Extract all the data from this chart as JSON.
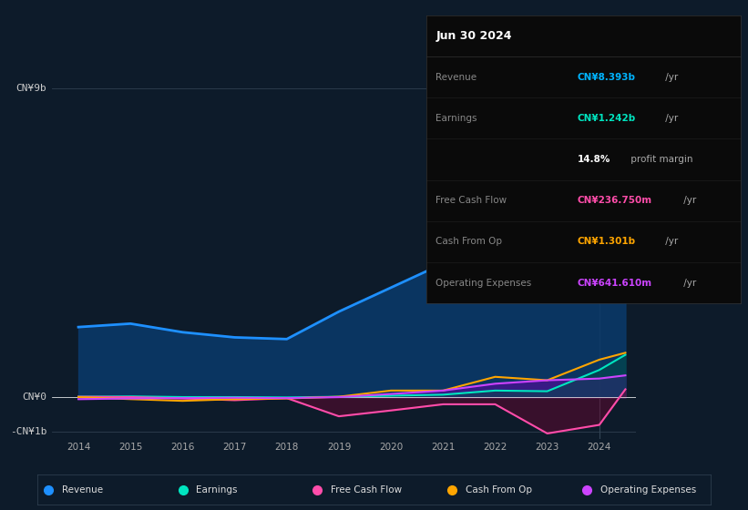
{
  "background_color": "#0d1b2a",
  "plot_bg_color": "#0d1b2a",
  "grid_color": "#2a3a4a",
  "title_box": {
    "date": "Jun 30 2024",
    "rows": [
      {
        "label": "Revenue",
        "value": "CN¥8.393b",
        "suffix": " /yr",
        "color": "#00b4ff"
      },
      {
        "label": "Earnings",
        "value": "CN¥1.242b",
        "suffix": " /yr",
        "color": "#00e5c0"
      },
      {
        "label": "",
        "value": "14.8%",
        "suffix": " profit margin",
        "color": "#ffffff"
      },
      {
        "label": "Free Cash Flow",
        "value": "CN¥236.750m",
        "suffix": " /yr",
        "color": "#ff4daa"
      },
      {
        "label": "Cash From Op",
        "value": "CN¥1.301b",
        "suffix": " /yr",
        "color": "#ffa500"
      },
      {
        "label": "Operating Expenses",
        "value": "CN¥641.610m",
        "suffix": " /yr",
        "color": "#cc44ff"
      }
    ]
  },
  "ylim": [
    -1200000000.0,
    9500000000.0
  ],
  "ylabel_ticks": [
    {
      "val": 9000000000.0,
      "label": "CN¥9b"
    },
    {
      "val": 0,
      "label": "CN¥0"
    },
    {
      "val": -1000000000.0,
      "label": "-CN¥1b"
    }
  ],
  "x_years": [
    2014,
    2015,
    2016,
    2017,
    2018,
    2019,
    2020,
    2021,
    2022,
    2023,
    2024,
    2024.5
  ],
  "revenue": [
    2050,
    2150,
    1900,
    1750,
    1700,
    2500,
    3200,
    3900,
    5100,
    6200,
    7800,
    8393
  ],
  "earnings": [
    20,
    30,
    10,
    10,
    0,
    20,
    50,
    80,
    200,
    180,
    800,
    1242
  ],
  "free_cash": [
    20,
    10,
    -30,
    -80,
    -20,
    -550,
    -380,
    -200,
    -200,
    -1050,
    -800,
    237
  ],
  "cash_from_op": [
    10,
    -50,
    -100,
    -50,
    -30,
    20,
    200,
    200,
    600,
    500,
    1100,
    1301
  ],
  "op_expenses": [
    -50,
    -30,
    -20,
    -10,
    -20,
    10,
    100,
    200,
    400,
    500,
    550,
    642
  ],
  "colors": {
    "revenue": "#1e90ff",
    "revenue_fill": "#0a3a6b",
    "earnings": "#00e5c0",
    "free_cash": "#ff4daa",
    "cash_from_op": "#ffa500",
    "op_expenses": "#cc44ff"
  },
  "legend": [
    {
      "label": "Revenue",
      "color": "#1e90ff"
    },
    {
      "label": "Earnings",
      "color": "#00e5c0"
    },
    {
      "label": "Free Cash Flow",
      "color": "#ff4daa"
    },
    {
      "label": "Cash From Op",
      "color": "#ffa500"
    },
    {
      "label": "Operating Expenses",
      "color": "#cc44ff"
    }
  ]
}
